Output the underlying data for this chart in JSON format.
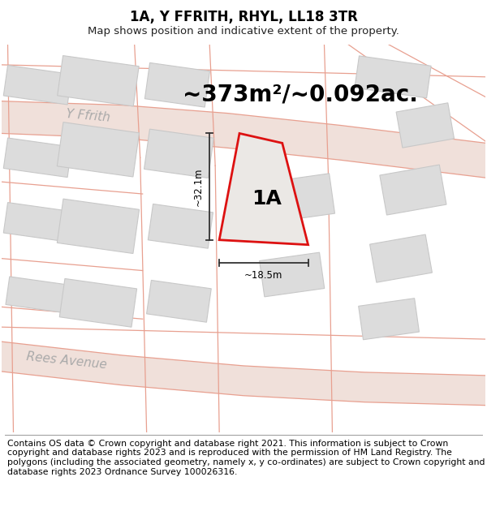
{
  "title": "1A, Y FFRITH, RHYL, LL18 3TR",
  "subtitle": "Map shows position and indicative extent of the property.",
  "area_text": "~373m²/~0.092ac.",
  "label": "1A",
  "dim_vertical": "~32.1m",
  "dim_horizontal": "~18.5m",
  "map_bg": "#f7f6f4",
  "road_line_color": "#e8a090",
  "road_fill_color": "#f0e0da",
  "building_fill": "#dcdcdc",
  "building_edge": "#c8c8c8",
  "plot_fill": "#ebe8e5",
  "plot_edge": "#dd1111",
  "plot_lw": 2.0,
  "footer_text": "Contains OS data © Crown copyright and database right 2021. This information is subject to Crown copyright and database rights 2023 and is reproduced with the permission of HM Land Registry. The polygons (including the associated geometry, namely x, y co-ordinates) are subject to Crown copyright and database rights 2023 Ordnance Survey 100026316.",
  "street1": "Y Ffrith",
  "street2": "Rees Avenue",
  "title_fontsize": 12,
  "subtitle_fontsize": 9.5,
  "area_fontsize": 20,
  "label_fontsize": 18,
  "street_fontsize": 11,
  "dim_fontsize": 8.5,
  "footer_fontsize": 7.8
}
